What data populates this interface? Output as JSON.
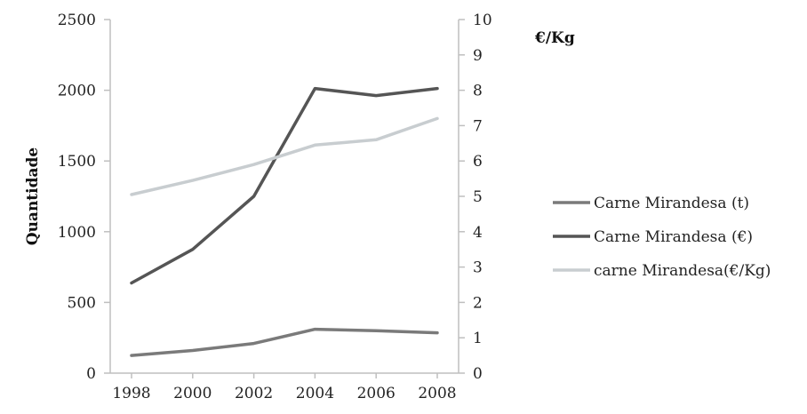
{
  "chart_data": {
    "type": "line",
    "x": [
      1998,
      2000,
      2002,
      2004,
      2006,
      2008
    ],
    "x_tick_labels": [
      "1998",
      "2000",
      "2002",
      "2004",
      "2006",
      "2008"
    ],
    "ylabel": "Quantidade",
    "y2label": "€/Kg",
    "ylim": [
      0,
      2500
    ],
    "y2lim": [
      0,
      10
    ],
    "y_ticks": [
      "0",
      "500",
      "1000",
      "1500",
      "2000",
      "2500"
    ],
    "y2_ticks": [
      "0",
      "1",
      "2",
      "3",
      "4",
      "5",
      "6",
      "7",
      "8",
      "9",
      "10"
    ],
    "grid": false,
    "legend_position": "right",
    "series": [
      {
        "name": "Carne Mirandesa (t)",
        "axis": "left",
        "color": "#7a7a7a",
        "values": [
          125,
          160,
          210,
          310,
          300,
          285
        ]
      },
      {
        "name": "Carne Mirandesa (€)",
        "axis": "right",
        "color": "#555555",
        "values": [
          2.55,
          3.5,
          5.0,
          8.05,
          7.85,
          8.05
        ]
      },
      {
        "name": "carne Mirandesa(€/Kg)",
        "axis": "right",
        "color": "#c8cdd0",
        "values": [
          5.05,
          5.45,
          5.9,
          6.45,
          6.6,
          7.2
        ]
      }
    ]
  }
}
